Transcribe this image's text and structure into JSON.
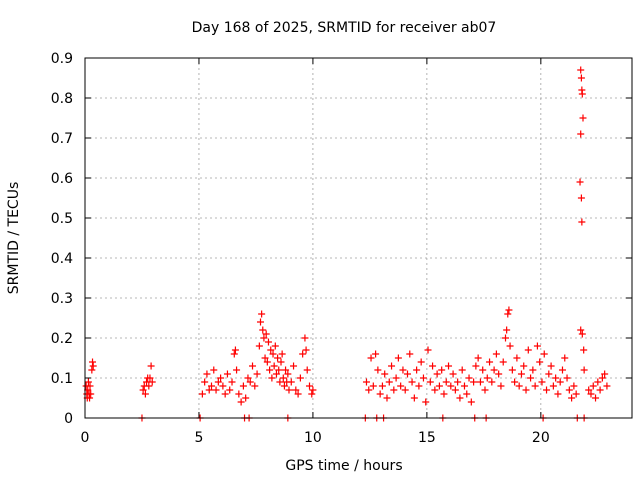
{
  "colors": {
    "marker": "#ff0000",
    "grid": "#a0a0a0",
    "axis": "#000000",
    "background": "#ffffff"
  },
  "chart_data": {
    "type": "scatter",
    "title": "Day 168 of 2025, SRMTID for receiver ab07",
    "xlabel": "GPS time / hours",
    "ylabel": "SRMTID / TECUs",
    "xlim": [
      0,
      24
    ],
    "ylim": [
      0,
      0.9
    ],
    "grid": true,
    "marker": "+",
    "x_ticks": [
      0,
      5,
      10,
      15,
      20
    ],
    "x_tick_labels": [
      "0",
      "5",
      "10",
      "15",
      "20"
    ],
    "y_ticks": [
      0,
      0.1,
      0.2,
      0.3,
      0.4,
      0.5,
      0.6,
      0.7,
      0.8,
      0.9
    ],
    "y_tick_labels": [
      "0",
      "0.1",
      "0.2",
      "0.3",
      "0.4",
      "0.5",
      "0.6",
      "0.7",
      "0.8",
      "0.9"
    ],
    "series": [
      {
        "name": "SRMTID",
        "points": [
          [
            0.05,
            0.08
          ],
          [
            0.08,
            0.06
          ],
          [
            0.1,
            0.05
          ],
          [
            0.12,
            0.07
          ],
          [
            0.15,
            0.09
          ],
          [
            0.18,
            0.06
          ],
          [
            0.2,
            0.05
          ],
          [
            0.22,
            0.08
          ],
          [
            0.25,
            0.06
          ],
          [
            0.3,
            0.12
          ],
          [
            0.33,
            0.14
          ],
          [
            0.36,
            0.13
          ],
          [
            2.5,
            0.0
          ],
          [
            2.55,
            0.07
          ],
          [
            2.6,
            0.08
          ],
          [
            2.65,
            0.06
          ],
          [
            2.7,
            0.09
          ],
          [
            2.75,
            0.1
          ],
          [
            2.8,
            0.08
          ],
          [
            2.85,
            0.1
          ],
          [
            2.9,
            0.13
          ],
          [
            2.95,
            0.09
          ],
          [
            5.05,
            0.0
          ],
          [
            5.15,
            0.06
          ],
          [
            5.25,
            0.09
          ],
          [
            5.35,
            0.11
          ],
          [
            5.45,
            0.07
          ],
          [
            5.55,
            0.08
          ],
          [
            5.65,
            0.12
          ],
          [
            5.75,
            0.07
          ],
          [
            5.85,
            0.09
          ],
          [
            5.95,
            0.1
          ],
          [
            6.05,
            0.08
          ],
          [
            6.15,
            0.06
          ],
          [
            6.25,
            0.11
          ],
          [
            6.35,
            0.07
          ],
          [
            6.45,
            0.09
          ],
          [
            6.55,
            0.16
          ],
          [
            6.6,
            0.17
          ],
          [
            6.65,
            0.12
          ],
          [
            6.75,
            0.06
          ],
          [
            6.85,
            0.04
          ],
          [
            6.95,
            0.08
          ],
          [
            7.05,
            0.05
          ],
          [
            7.15,
            0.1
          ],
          [
            7.25,
            0.09
          ],
          [
            7.35,
            0.13
          ],
          [
            7.45,
            0.08
          ],
          [
            7.55,
            0.11
          ],
          [
            7.65,
            0.18
          ],
          [
            7.7,
            0.24
          ],
          [
            7.75,
            0.26
          ],
          [
            7.8,
            0.22
          ],
          [
            7.85,
            0.2
          ],
          [
            7.9,
            0.15
          ],
          [
            7.95,
            0.21
          ],
          [
            8.0,
            0.14
          ],
          [
            8.05,
            0.19
          ],
          [
            8.1,
            0.12
          ],
          [
            8.15,
            0.17
          ],
          [
            8.2,
            0.1
          ],
          [
            8.25,
            0.16
          ],
          [
            8.3,
            0.13
          ],
          [
            8.35,
            0.18
          ],
          [
            8.4,
            0.11
          ],
          [
            8.45,
            0.15
          ],
          [
            8.5,
            0.12
          ],
          [
            8.55,
            0.09
          ],
          [
            8.6,
            0.14
          ],
          [
            8.65,
            0.16
          ],
          [
            8.7,
            0.1
          ],
          [
            8.75,
            0.08
          ],
          [
            8.8,
            0.12
          ],
          [
            8.85,
            0.09
          ],
          [
            8.9,
            0.11
          ],
          [
            8.95,
            0.07
          ],
          [
            9.05,
            0.09
          ],
          [
            9.15,
            0.13
          ],
          [
            9.25,
            0.07
          ],
          [
            9.35,
            0.06
          ],
          [
            9.45,
            0.1
          ],
          [
            9.55,
            0.16
          ],
          [
            9.65,
            0.2
          ],
          [
            9.7,
            0.17
          ],
          [
            9.75,
            0.12
          ],
          [
            9.85,
            0.08
          ],
          [
            9.95,
            0.06
          ],
          [
            10.0,
            0.07
          ],
          [
            7.0,
            0.0
          ],
          [
            8.9,
            0.0
          ],
          [
            12.3,
            0.0
          ],
          [
            12.35,
            0.09
          ],
          [
            12.45,
            0.07
          ],
          [
            12.55,
            0.15
          ],
          [
            12.65,
            0.08
          ],
          [
            12.75,
            0.16
          ],
          [
            12.85,
            0.12
          ],
          [
            12.95,
            0.06
          ],
          [
            13.05,
            0.08
          ],
          [
            13.15,
            0.11
          ],
          [
            13.25,
            0.05
          ],
          [
            13.35,
            0.09
          ],
          [
            13.45,
            0.13
          ],
          [
            13.55,
            0.07
          ],
          [
            13.65,
            0.1
          ],
          [
            13.75,
            0.15
          ],
          [
            13.85,
            0.08
          ],
          [
            13.95,
            0.12
          ],
          [
            14.05,
            0.07
          ],
          [
            14.15,
            0.11
          ],
          [
            14.25,
            0.16
          ],
          [
            14.35,
            0.09
          ],
          [
            14.45,
            0.05
          ],
          [
            14.55,
            0.12
          ],
          [
            14.65,
            0.08
          ],
          [
            14.75,
            0.14
          ],
          [
            14.85,
            0.1
          ],
          [
            14.95,
            0.04
          ],
          [
            15.05,
            0.17
          ],
          [
            15.15,
            0.09
          ],
          [
            15.25,
            0.13
          ],
          [
            15.35,
            0.07
          ],
          [
            15.45,
            0.11
          ],
          [
            15.55,
            0.08
          ],
          [
            15.65,
            0.12
          ],
          [
            15.75,
            0.06
          ],
          [
            15.85,
            0.09
          ],
          [
            15.95,
            0.13
          ],
          [
            16.05,
            0.08
          ],
          [
            16.15,
            0.11
          ],
          [
            16.25,
            0.07
          ],
          [
            16.35,
            0.09
          ],
          [
            16.45,
            0.05
          ],
          [
            16.55,
            0.12
          ],
          [
            16.65,
            0.08
          ],
          [
            16.75,
            0.06
          ],
          [
            16.85,
            0.1
          ],
          [
            16.95,
            0.04
          ],
          [
            17.05,
            0.09
          ],
          [
            17.15,
            0.13
          ],
          [
            17.25,
            0.15
          ],
          [
            17.35,
            0.09
          ],
          [
            17.45,
            0.12
          ],
          [
            17.55,
            0.07
          ],
          [
            17.65,
            0.1
          ],
          [
            17.75,
            0.14
          ],
          [
            17.85,
            0.09
          ],
          [
            17.95,
            0.12
          ],
          [
            18.05,
            0.16
          ],
          [
            18.15,
            0.11
          ],
          [
            18.25,
            0.08
          ],
          [
            18.35,
            0.14
          ],
          [
            18.45,
            0.2
          ],
          [
            18.5,
            0.22
          ],
          [
            18.55,
            0.26
          ],
          [
            18.6,
            0.27
          ],
          [
            18.65,
            0.18
          ],
          [
            18.75,
            0.12
          ],
          [
            18.85,
            0.09
          ],
          [
            18.95,
            0.15
          ],
          [
            19.05,
            0.08
          ],
          [
            19.15,
            0.11
          ],
          [
            19.25,
            0.13
          ],
          [
            19.35,
            0.07
          ],
          [
            19.45,
            0.17
          ],
          [
            19.55,
            0.1
          ],
          [
            19.65,
            0.12
          ],
          [
            19.75,
            0.08
          ],
          [
            19.85,
            0.18
          ],
          [
            19.95,
            0.14
          ],
          [
            20.05,
            0.09
          ],
          [
            20.15,
            0.16
          ],
          [
            20.25,
            0.07
          ],
          [
            20.35,
            0.11
          ],
          [
            20.45,
            0.13
          ],
          [
            20.55,
            0.08
          ],
          [
            20.65,
            0.1
          ],
          [
            20.75,
            0.06
          ],
          [
            20.85,
            0.09
          ],
          [
            20.95,
            0.12
          ],
          [
            21.05,
            0.15
          ],
          [
            21.15,
            0.1
          ],
          [
            21.25,
            0.07
          ],
          [
            21.35,
            0.05
          ],
          [
            21.45,
            0.08
          ],
          [
            21.55,
            0.06
          ],
          [
            21.75,
            0.87
          ],
          [
            21.78,
            0.85
          ],
          [
            21.8,
            0.82
          ],
          [
            21.82,
            0.81
          ],
          [
            21.85,
            0.75
          ],
          [
            21.75,
            0.71
          ],
          [
            21.72,
            0.59
          ],
          [
            21.78,
            0.55
          ],
          [
            21.8,
            0.49
          ],
          [
            21.75,
            0.22
          ],
          [
            21.82,
            0.21
          ],
          [
            21.88,
            0.17
          ],
          [
            21.9,
            0.12
          ],
          [
            22.1,
            0.07
          ],
          [
            22.2,
            0.06
          ],
          [
            22.3,
            0.08
          ],
          [
            22.4,
            0.05
          ],
          [
            22.5,
            0.09
          ],
          [
            22.6,
            0.07
          ],
          [
            22.7,
            0.1
          ],
          [
            22.8,
            0.11
          ],
          [
            22.9,
            0.08
          ],
          [
            17.1,
            0.0
          ],
          [
            17.6,
            0.0
          ],
          [
            20.1,
            0.0
          ],
          [
            21.6,
            0.0
          ],
          [
            21.9,
            0.0
          ],
          [
            15.7,
            0.0
          ],
          [
            13.1,
            0.0
          ],
          [
            12.8,
            0.0
          ],
          [
            7.2,
            0.0
          ]
        ]
      }
    ]
  }
}
